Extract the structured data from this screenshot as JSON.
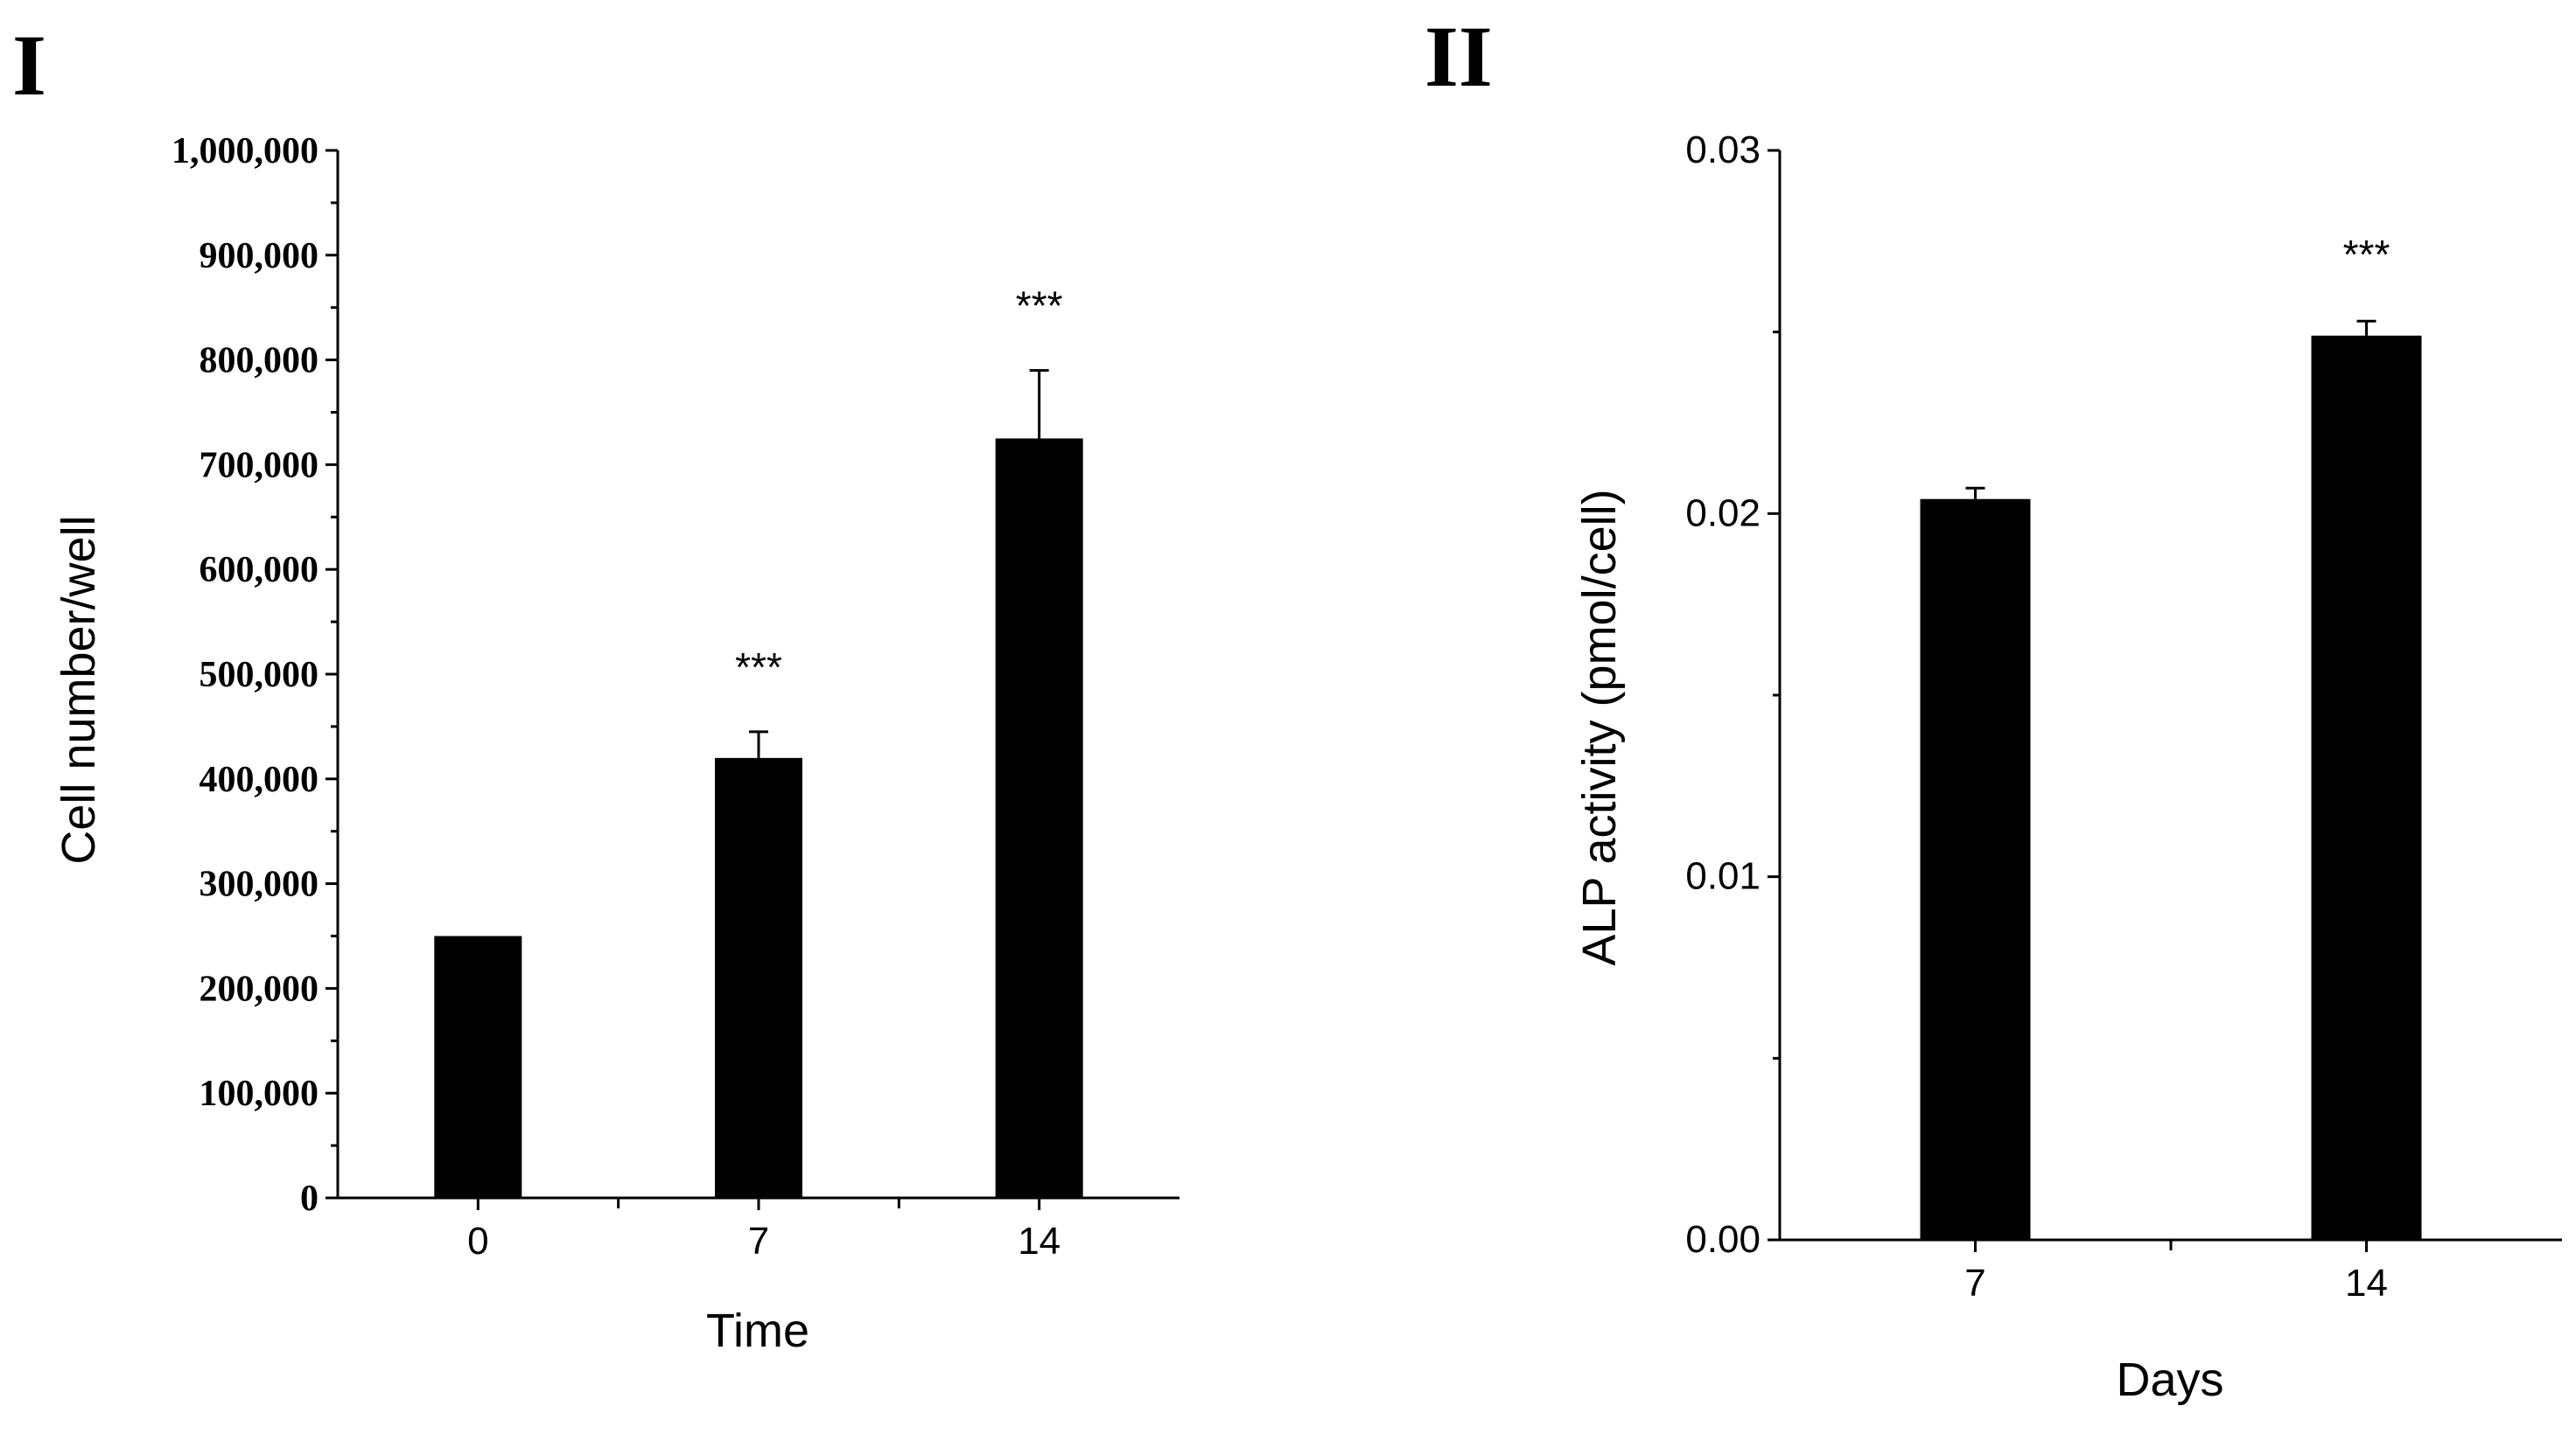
{
  "chart_data": [
    {
      "panel": "I",
      "type": "bar",
      "categories": [
        "0",
        "7",
        "14"
      ],
      "values": [
        250000,
        420000,
        725000
      ],
      "errors": [
        0,
        25000,
        65000
      ],
      "significance": [
        "",
        "***",
        "***"
      ],
      "xlabel": "Time",
      "ylabel": "Cell number/well",
      "ylim": [
        0,
        1000000
      ],
      "yticks": [
        0,
        100000,
        200000,
        300000,
        400000,
        500000,
        600000,
        700000,
        800000,
        900000,
        1000000
      ],
      "ytick_labels": [
        "0",
        "100,000",
        "200,000",
        "300,000",
        "400,000",
        "500,000",
        "600,000",
        "700,000",
        "800,000",
        "900,000",
        "1,000,000"
      ],
      "grid": false,
      "bar_color": "#000000"
    },
    {
      "panel": "II",
      "type": "bar",
      "categories": [
        "7",
        "14"
      ],
      "values": [
        0.0204,
        0.0249
      ],
      "errors": [
        0.0003,
        0.0004
      ],
      "significance": [
        "",
        "***"
      ],
      "xlabel": "Days",
      "ylabel": "ALP activity (pmol/cell)",
      "ylim": [
        0,
        0.03
      ],
      "yticks": [
        0,
        0.01,
        0.02,
        0.03
      ],
      "ytick_labels": [
        "0.00",
        "0.01",
        "0.02",
        "0.03"
      ],
      "grid": false,
      "bar_color": "#000000"
    }
  ]
}
